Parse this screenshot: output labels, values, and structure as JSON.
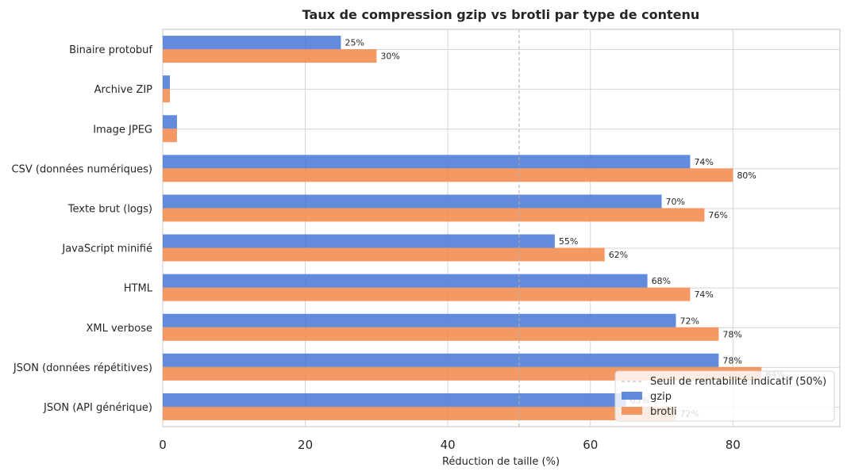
{
  "chart_data": {
    "type": "bar",
    "orientation": "horizontal",
    "title": "Taux de compression gzip vs brotli par type de contenu",
    "xlabel": "Réduction de taille (%)",
    "ylabel": "",
    "xlim": [
      0,
      95
    ],
    "xticks": [
      "0",
      "20",
      "40",
      "60",
      "80"
    ],
    "grid": true,
    "categories": [
      "Binaire protobuf",
      "Archive ZIP",
      "Image JPEG",
      "CSV (données numériques)",
      "Texte brut (logs)",
      "JavaScript minifié",
      "HTML",
      "XML verbose",
      "JSON (données répétitives)",
      "JSON (API générique)"
    ],
    "series": [
      {
        "name": "gzip",
        "color": "#4c7bd6",
        "values": [
          25,
          1,
          2,
          74,
          70,
          55,
          68,
          72,
          78,
          65
        ],
        "labels": [
          "25%",
          "",
          "",
          "74%",
          "70%",
          "55%",
          "68%",
          "72%",
          "78%",
          "65%"
        ]
      },
      {
        "name": "brotli",
        "color": "#f28a4f",
        "values": [
          30,
          1,
          2,
          80,
          76,
          62,
          74,
          78,
          84,
          72
        ],
        "labels": [
          "30%",
          "",
          "",
          "80%",
          "76%",
          "62%",
          "74%",
          "78%",
          "84%",
          "72%"
        ]
      }
    ],
    "reference_line": {
      "x": 50,
      "label": "Seuil de rentabilité indicatif (50%)",
      "style": "dashed",
      "color": "#b0b0b0"
    },
    "legend": {
      "placement": "bottom-right",
      "entries": [
        "Seuil de rentabilité indicatif (50%)",
        "gzip",
        "brotli"
      ]
    }
  }
}
